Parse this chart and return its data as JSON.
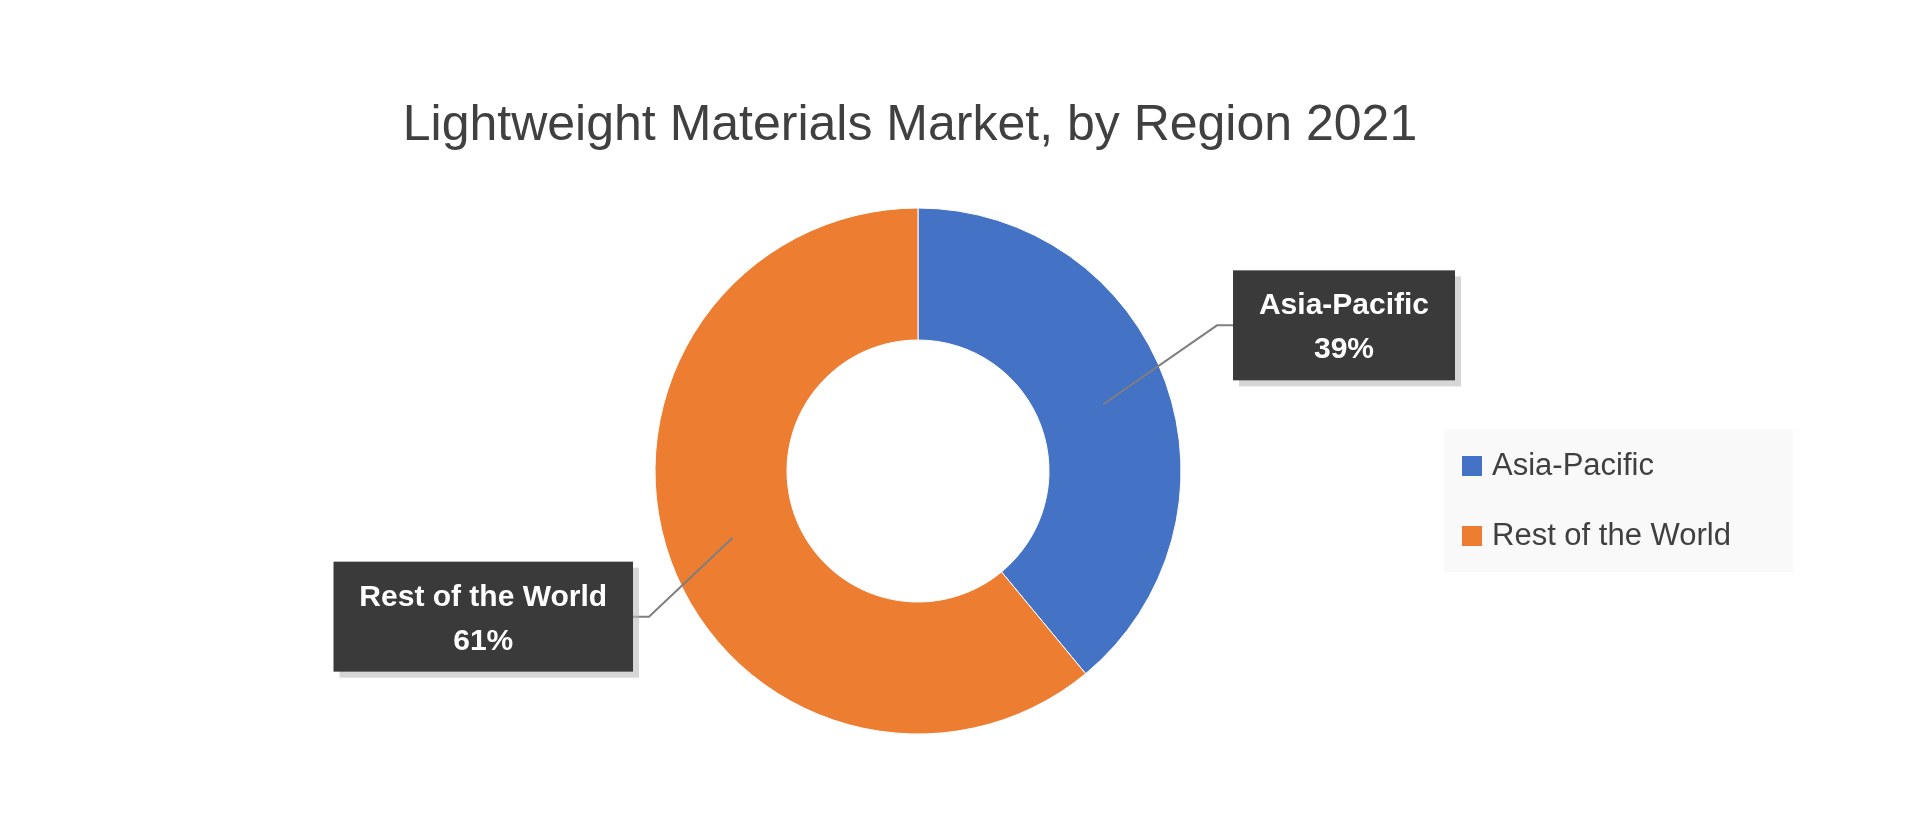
{
  "chart_data": {
    "type": "donut",
    "title": "Lightweight Materials Market, by Region 2021",
    "categories": [
      "Asia-Pacific",
      "Rest of the World"
    ],
    "values": [
      39,
      61
    ],
    "colors": [
      "#4472c4",
      "#ed7d31"
    ],
    "value_labels": [
      "39%",
      "61%"
    ],
    "legend": "right"
  }
}
